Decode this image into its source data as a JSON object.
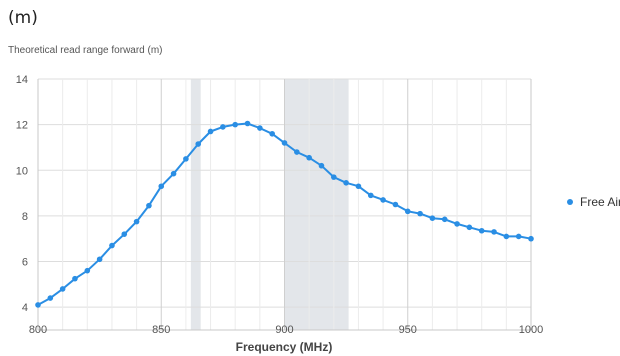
{
  "panel_label": "(m)",
  "chart_data": {
    "type": "line",
    "title": "Theoretical read range forward (m)",
    "xlabel": "Frequency (MHz)",
    "ylabel": "",
    "xlim": [
      800,
      1000
    ],
    "ylim": [
      3,
      14
    ],
    "xticks": [
      800,
      850,
      900,
      950,
      1000
    ],
    "yticks": [
      4,
      6,
      8,
      10,
      12,
      14
    ],
    "grid": true,
    "legend_position": "right",
    "shaded_bands": [
      [
        862,
        866
      ],
      [
        900,
        926
      ]
    ],
    "series": [
      {
        "name": "Free Air",
        "color": "#2a8ee4",
        "x": [
          800,
          805,
          810,
          815,
          820,
          825,
          830,
          835,
          840,
          845,
          850,
          855,
          860,
          865,
          870,
          875,
          880,
          885,
          890,
          895,
          900,
          905,
          910,
          915,
          920,
          925,
          930,
          935,
          940,
          945,
          950,
          955,
          960,
          965,
          970,
          975,
          980,
          985,
          990,
          995,
          1000
        ],
        "y": [
          4.1,
          4.4,
          4.8,
          5.25,
          5.6,
          6.1,
          6.7,
          7.2,
          7.75,
          8.45,
          9.3,
          9.85,
          10.5,
          11.15,
          11.7,
          11.9,
          12.0,
          12.05,
          11.85,
          11.6,
          11.2,
          10.8,
          10.55,
          10.2,
          9.7,
          9.45,
          9.3,
          8.9,
          8.7,
          8.5,
          8.2,
          8.1,
          7.9,
          7.85,
          7.65,
          7.5,
          7.35,
          7.3,
          7.1,
          7.1,
          7.0
        ]
      }
    ]
  },
  "colors": {
    "grid": "#dddddd",
    "band": "#e3e6ea",
    "axis": "#c8c8c8"
  }
}
